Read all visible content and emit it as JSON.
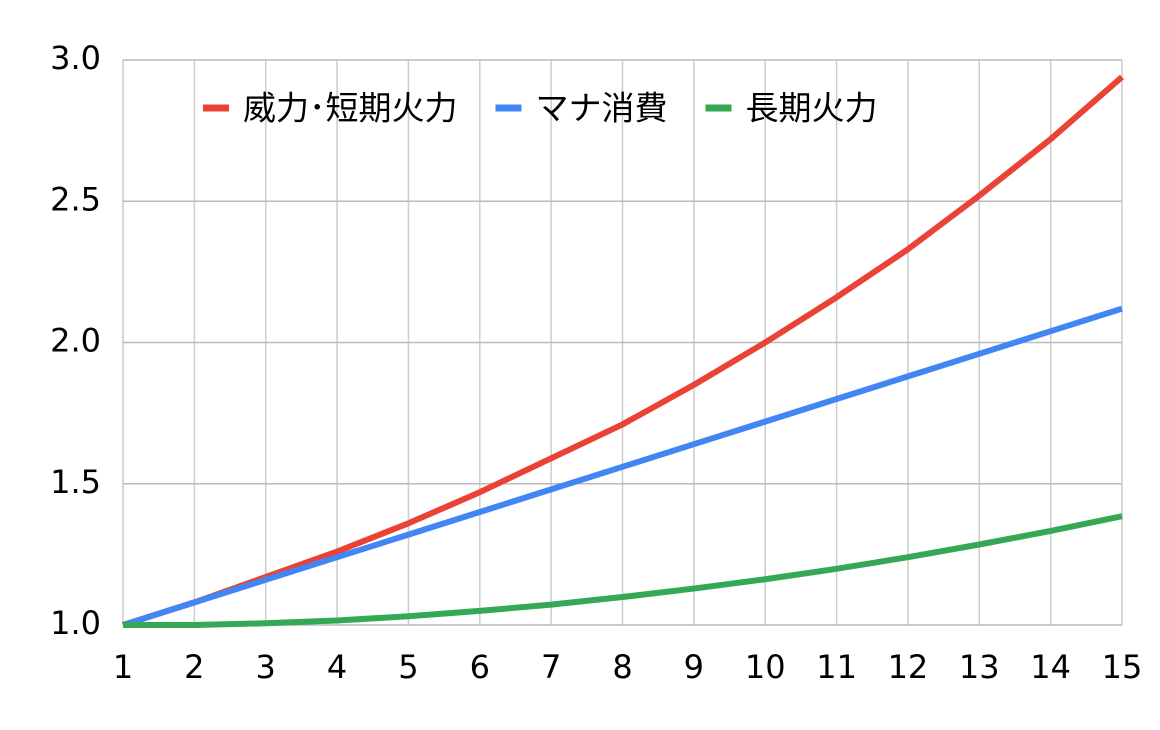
{
  "chart_data": {
    "type": "line",
    "x": [
      1,
      2,
      3,
      4,
      5,
      6,
      7,
      8,
      9,
      10,
      11,
      12,
      13,
      14,
      15
    ],
    "series": [
      {
        "name": "威力･短期火力",
        "color": "#ea4335",
        "values": [
          1.0,
          1.08,
          1.17,
          1.26,
          1.36,
          1.47,
          1.59,
          1.71,
          1.85,
          2.0,
          2.16,
          2.33,
          2.52,
          2.72,
          2.94
        ]
      },
      {
        "name": "マナ消費",
        "color": "#4285f4",
        "values": [
          1.0,
          1.08,
          1.16,
          1.24,
          1.32,
          1.4,
          1.48,
          1.56,
          1.64,
          1.72,
          1.8,
          1.88,
          1.96,
          2.04,
          2.12
        ]
      },
      {
        "name": "長期火力",
        "color": "#34a853",
        "values": [
          1.0,
          1.0,
          1.006,
          1.016,
          1.031,
          1.05,
          1.072,
          1.099,
          1.129,
          1.162,
          1.199,
          1.24,
          1.285,
          1.333,
          1.385
        ]
      }
    ],
    "xlim": [
      1,
      15
    ],
    "xticks": [
      1,
      2,
      3,
      4,
      5,
      6,
      7,
      8,
      9,
      10,
      11,
      12,
      13,
      14,
      15
    ],
    "ylim": [
      1,
      3
    ],
    "yticks": [
      {
        "value": 1,
        "label": "1.0"
      },
      {
        "value": 1.5,
        "label": "1.5"
      },
      {
        "value": 2,
        "label": "2.0"
      },
      {
        "value": 2.5,
        "label": "2.5"
      },
      {
        "value": 3,
        "label": "3.0"
      }
    ],
    "grid": true,
    "legend": "top-left"
  }
}
